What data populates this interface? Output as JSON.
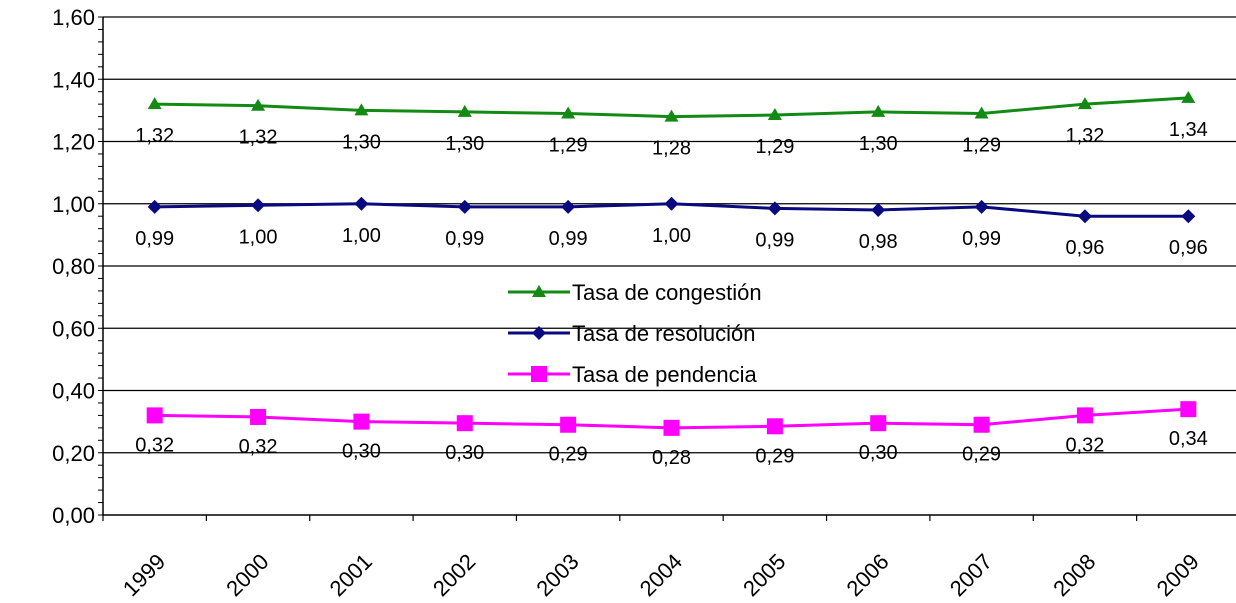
{
  "chart_data": {
    "type": "line",
    "title": "",
    "xlabel": "",
    "ylabel": "",
    "categories": [
      "1999",
      "2000",
      "2001",
      "2002",
      "2003",
      "2004",
      "2005",
      "2006",
      "2007",
      "2008",
      "2009"
    ],
    "ylim": [
      0,
      1.6
    ],
    "yticks": [
      0,
      0.2,
      0.4,
      0.6,
      0.8,
      1.0,
      1.2,
      1.4,
      1.6
    ],
    "ytick_labels": [
      "0,00",
      "0,20",
      "0,40",
      "0,60",
      "0,80",
      "1,00",
      "1,20",
      "1,40",
      "1,60"
    ],
    "grid": true,
    "legend_position": "center",
    "series": [
      {
        "name": "Tasa de congestión",
        "color": "#138a13",
        "marker": "triangle",
        "values": [
          1.32,
          1.315,
          1.3,
          1.295,
          1.29,
          1.28,
          1.285,
          1.295,
          1.29,
          1.32,
          1.34
        ],
        "labels": [
          "1,32",
          "1,32",
          "1,30",
          "1,30",
          "1,29",
          "1,28",
          "1,29",
          "1,30",
          "1,29",
          "1,32",
          "1,34"
        ]
      },
      {
        "name": "Tasa de resolución",
        "color": "#0a0a80",
        "marker": "diamond",
        "values": [
          0.99,
          0.995,
          1.0,
          0.99,
          0.99,
          1.0,
          0.985,
          0.98,
          0.99,
          0.96,
          0.96
        ],
        "labels": [
          "0,99",
          "1,00",
          "1,00",
          "0,99",
          "0,99",
          "1,00",
          "0,99",
          "0,98",
          "0,99",
          "0,96",
          "0,96"
        ]
      },
      {
        "name": "Tasa de pendencia",
        "color": "#ff00ff",
        "marker": "square",
        "values": [
          0.32,
          0.315,
          0.3,
          0.295,
          0.29,
          0.28,
          0.285,
          0.295,
          0.29,
          0.32,
          0.34
        ],
        "labels": [
          "0,32",
          "0,32",
          "0,30",
          "0,30",
          "0,29",
          "0,28",
          "0,29",
          "0,30",
          "0,29",
          "0,32",
          "0,34"
        ]
      }
    ]
  }
}
